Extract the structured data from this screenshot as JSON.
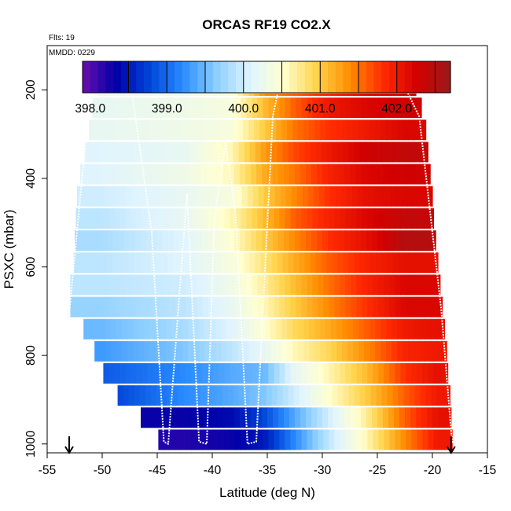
{
  "chart_data": {
    "type": "heatmap",
    "title": "ORCAS RF19 CO2.X",
    "flights_label": "Flts: 19",
    "date_label": "MMDD: 0229",
    "xlabel": "Latitude (deg N)",
    "ylabel": "PSXC (mbar)",
    "xlim": [
      -55,
      -15
    ],
    "ylim": [
      1020,
      100
    ],
    "x_ticks": [
      "-55",
      "-50",
      "-45",
      "-40",
      "-35",
      "-30",
      "-25",
      "-20",
      "-15"
    ],
    "y_ticks": [
      "200",
      "400",
      "600",
      "800",
      "1000"
    ],
    "colorbar": {
      "range": [
        397.9,
        402.7
      ],
      "tick_labels": [
        "398.0",
        "399.0",
        "400.0",
        "401.0",
        "402.0"
      ],
      "divisions": [
        398.5,
        399.0,
        399.5,
        400.0,
        400.5,
        401.0,
        401.5,
        402.0,
        402.5
      ],
      "colors": [
        "#6a0dad",
        "#0000a8",
        "#0044d8",
        "#2a8cff",
        "#8ccfff",
        "#dff4ff",
        "#ffffd0",
        "#ffd34a",
        "#ff8c00",
        "#ff2a00",
        "#d40000",
        "#9a1a1a"
      ]
    },
    "grid": false,
    "pressure_levels": [
      190,
      240,
      290,
      340,
      390,
      440,
      490,
      540,
      590,
      640,
      690,
      740,
      790,
      840,
      890,
      940,
      990
    ],
    "level_lat_extent": [
      [
        -50.7,
        -21.5
      ],
      [
        -50.9,
        -21.0
      ],
      [
        -51.2,
        -20.6
      ],
      [
        -51.6,
        -20.4
      ],
      [
        -52.0,
        -20.2
      ],
      [
        -52.3,
        -20.0
      ],
      [
        -52.4,
        -19.9
      ],
      [
        -52.5,
        -19.7
      ],
      [
        -52.6,
        -19.5
      ],
      [
        -52.9,
        -19.3
      ],
      [
        -52.9,
        -19.1
      ],
      [
        -51.7,
        -18.9
      ],
      [
        -50.7,
        -18.7
      ],
      [
        -49.9,
        -18.6
      ],
      [
        -48.6,
        -18.4
      ],
      [
        -46.5,
        -18.3
      ],
      [
        -44.9,
        -18.2
      ]
    ],
    "profile_track": {
      "lat": [
        -53.0,
        -51.2,
        -49.9,
        -47.4,
        -45.5,
        -44.4,
        -44.0,
        -42.3,
        -41.2,
        -40.5,
        -39.8,
        -38.8,
        -37.9,
        -36.8,
        -36.0,
        -34.5,
        -33.9,
        -22.6,
        -21.2,
        -19.2,
        -18.2
      ],
      "pressure": [
        705,
        235,
        188,
        188,
        520,
        995,
        1000,
        435,
        995,
        1000,
        490,
        318,
        475,
        1000,
        995,
        260,
        188,
        188,
        260,
        695,
        1000
      ]
    },
    "arrows_lat": [
      -53.0,
      -18.3
    ],
    "bands": {
      "lat_edges": [
        -55,
        -45,
        -40,
        -36.5,
        -34,
        -31,
        -28,
        -24,
        -21,
        -18
      ],
      "rows": [
        [
          400.3,
          400.3,
          400.4,
          401.4,
          401.6,
          401.9,
          402.2,
          402.3,
          402.3
        ],
        [
          400.2,
          400.3,
          400.4,
          401.1,
          401.6,
          402.0,
          402.2,
          402.3,
          402.3
        ],
        [
          400.2,
          400.3,
          400.4,
          401.0,
          401.5,
          401.8,
          402.0,
          402.2,
          402.2
        ],
        [
          400.1,
          400.2,
          400.6,
          401.3,
          401.7,
          402.0,
          402.3,
          402.4,
          402.4
        ],
        [
          400.1,
          400.3,
          400.6,
          401.2,
          401.5,
          401.9,
          402.2,
          402.3,
          402.3
        ],
        [
          400.0,
          400.2,
          400.4,
          401.0,
          401.4,
          401.8,
          402.1,
          402.2,
          402.2
        ],
        [
          399.9,
          400.2,
          400.6,
          401.1,
          401.6,
          401.9,
          402.2,
          402.4,
          402.4
        ],
        [
          399.8,
          400.1,
          400.5,
          401.0,
          401.4,
          401.8,
          402.1,
          402.5,
          402.5
        ],
        [
          399.9,
          400.1,
          400.4,
          400.8,
          401.2,
          401.6,
          401.9,
          402.1,
          402.1
        ],
        [
          399.9,
          400.0,
          400.3,
          400.7,
          401.1,
          401.5,
          401.9,
          402.2,
          402.2
        ],
        [
          399.7,
          399.9,
          400.2,
          400.6,
          401.0,
          401.4,
          401.8,
          402.2,
          402.2
        ],
        [
          399.5,
          399.8,
          400.1,
          400.5,
          400.9,
          401.2,
          401.6,
          402.0,
          402.1
        ],
        [
          399.3,
          399.6,
          399.9,
          400.2,
          400.6,
          400.9,
          401.4,
          401.9,
          402.0
        ],
        [
          398.9,
          399.2,
          399.4,
          399.5,
          400.2,
          400.6,
          401.1,
          401.8,
          402.1
        ],
        [
          398.7,
          399.2,
          399.4,
          399.6,
          400.0,
          400.5,
          401.0,
          401.6,
          402.0
        ],
        [
          398.3,
          398.3,
          398.4,
          398.8,
          399.4,
          400.0,
          400.7,
          401.6,
          402.1
        ],
        [
          398.2,
          398.2,
          398.3,
          398.5,
          399.2,
          399.9,
          400.6,
          401.4,
          402.0
        ]
      ]
    }
  }
}
